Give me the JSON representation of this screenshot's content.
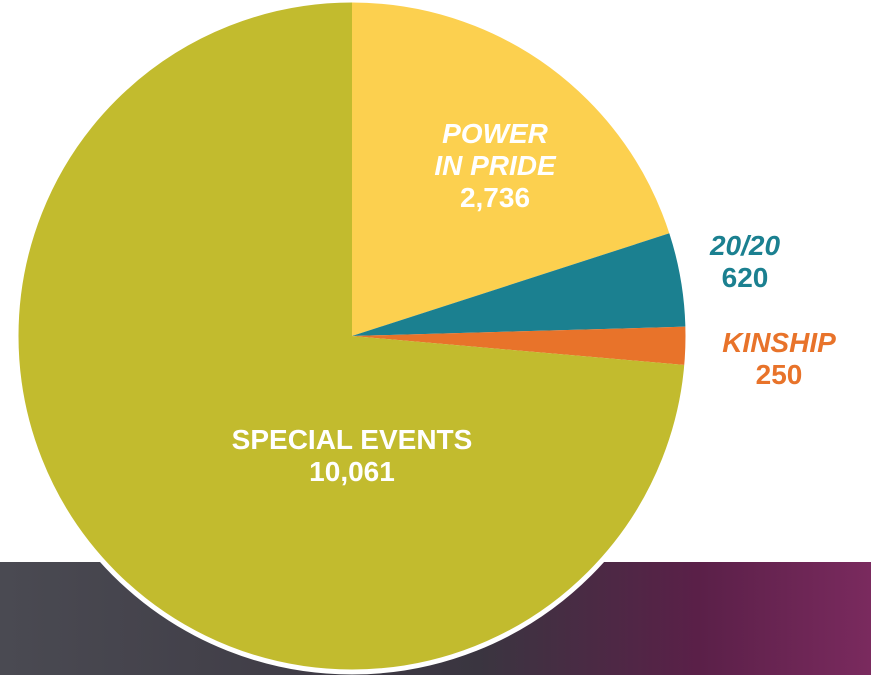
{
  "chart_data": {
    "type": "pie",
    "categories": [
      "POWER IN PRIDE",
      "20/20",
      "KINSHIP",
      "SPECIAL EVENTS"
    ],
    "values": [
      2736,
      620,
      250,
      10061
    ],
    "value_labels": [
      "2,736",
      "620",
      "250",
      "10,061"
    ],
    "colors": [
      "#fcd04f",
      "#1b8090",
      "#e8732a",
      "#c2bb2e"
    ]
  }
}
